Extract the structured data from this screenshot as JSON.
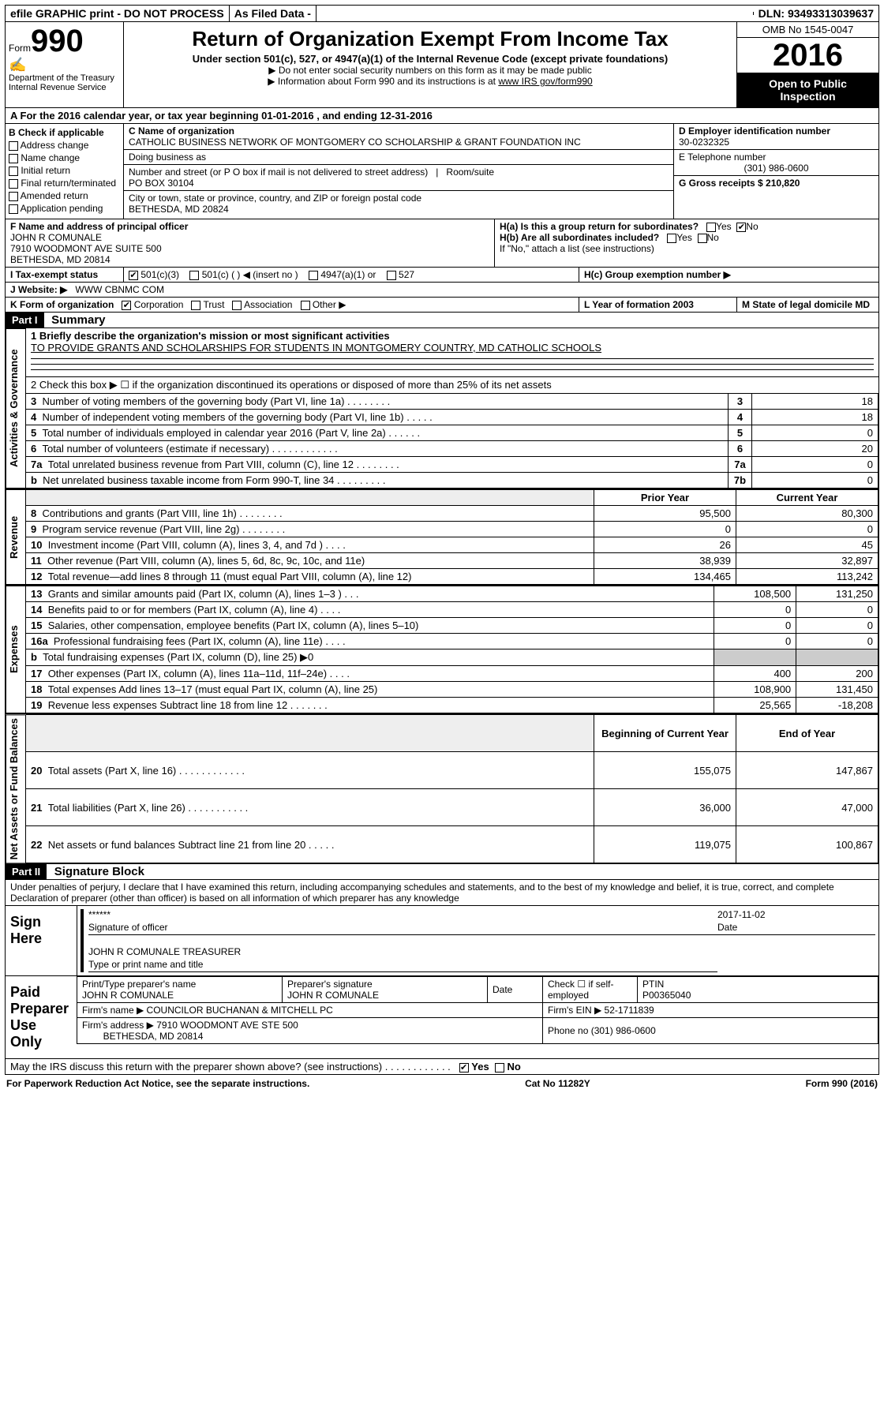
{
  "topbar": {
    "efile": "efile GRAPHIC print - DO NOT PROCESS",
    "asfiled": "As Filed Data -",
    "dln": "DLN: 93493313039637"
  },
  "header": {
    "form_label": "Form",
    "form_number": "990",
    "dept1": "Department of the Treasury",
    "dept2": "Internal Revenue Service",
    "title": "Return of Organization Exempt From Income Tax",
    "subtitle": "Under section 501(c), 527, or 4947(a)(1) of the Internal Revenue Code (except private foundations)",
    "note1": "▶ Do not enter social security numbers on this form as it may be made public",
    "note2_pre": "▶ Information about Form 990 and its instructions is at ",
    "note2_link": "www IRS gov/form990",
    "omb": "OMB No 1545-0047",
    "year": "2016",
    "openpub": "Open to Public Inspection"
  },
  "A": {
    "text": "A  For the 2016 calendar year, or tax year beginning 01-01-2016   , and ending 12-31-2016"
  },
  "B": {
    "title": "B Check if applicable",
    "opts": [
      "Address change",
      "Name change",
      "Initial return",
      "Final return/terminated",
      "Amended return",
      "Application pending"
    ]
  },
  "C": {
    "label": "C Name of organization",
    "name": "CATHOLIC BUSINESS NETWORK OF MONTGOMERY CO SCHOLARSHIP & GRANT FOUNDATION INC",
    "dba_label": "Doing business as",
    "addr_label": "Number and street (or P O  box if mail is not delivered to street address)",
    "room_label": "Room/suite",
    "addr": "PO BOX 30104",
    "city_label": "City or town, state or province, country, and ZIP or foreign postal code",
    "city": "BETHESDA, MD  20824"
  },
  "D": {
    "label": "D Employer identification number",
    "value": "30-0232325"
  },
  "E": {
    "label": "E Telephone number",
    "value": "(301) 986-0600"
  },
  "G": {
    "label": "G Gross receipts $ 210,820"
  },
  "F": {
    "label": "F  Name and address of principal officer",
    "name": "JOHN R COMUNALE",
    "addr1": "7910 WOODMONT AVE SUITE 500",
    "addr2": "BETHESDA, MD  20814"
  },
  "H": {
    "a": "H(a)  Is this a group return for subordinates?",
    "b": "H(b)  Are all subordinates included?",
    "note": "If \"No,\" attach a list  (see instructions)",
    "c": "H(c)  Group exemption number ▶",
    "yes": "Yes",
    "no": "No"
  },
  "I": {
    "label": "I  Tax-exempt status",
    "o501c3": "501(c)(3)",
    "o501c": "501(c) (   ) ◀ (insert no )",
    "o4947": "4947(a)(1) or",
    "o527": "527"
  },
  "J": {
    "label": "J  Website: ▶",
    "value": "WWW CBNMC COM"
  },
  "K": {
    "label": "K Form of organization",
    "corp": "Corporation",
    "trust": "Trust",
    "assoc": "Association",
    "other": "Other ▶"
  },
  "L": {
    "label": "L Year of formation  2003"
  },
  "M": {
    "label": "M State of legal domicile MD"
  },
  "partI": {
    "label": "Part I",
    "title": "Summary"
  },
  "summary": {
    "line1_label": "1 Briefly describe the organization's mission or most significant activities",
    "line1_text": "TO PROVIDE GRANTS AND SCHOLARSHIPS FOR STUDENTS IN MONTGOMERY COUNTRY, MD CATHOLIC SCHOOLS",
    "line2": "2  Check this box ▶ ☐  if the organization discontinued its operations or disposed of more than 25% of its net assets",
    "rows_gov": [
      {
        "n": "3",
        "t": "Number of voting members of the governing body (Part VI, line 1a)  .    .    .    .    .    .    .    .",
        "box": "3",
        "v": "18"
      },
      {
        "n": "4",
        "t": "Number of independent voting members of the governing body (Part VI, line 1b)   .    .    .    .    .",
        "box": "4",
        "v": "18"
      },
      {
        "n": "5",
        "t": "Total number of individuals employed in calendar year 2016 (Part V, line 2a)  .    .    .    .    .    .",
        "box": "5",
        "v": "0"
      },
      {
        "n": "6",
        "t": "Total number of volunteers (estimate if necessary)   .    .    .    .    .    .    .    .    .    .    .    .",
        "box": "6",
        "v": "20"
      },
      {
        "n": "7a",
        "t": "Total unrelated business revenue from Part VIII, column (C), line 12  .    .    .    .    .    .    .    .",
        "box": "7a",
        "v": "0"
      },
      {
        "n": "b",
        "t": "Net unrelated business taxable income from Form 990-T, line 34   .    .    .    .    .    .    .    .    .",
        "box": "7b",
        "v": "0"
      }
    ],
    "col_prior": "Prior Year",
    "col_current": "Current Year",
    "revenue": [
      {
        "n": "8",
        "t": "Contributions and grants (Part VIII, line 1h)   .    .    .    .    .    .    .    .",
        "p": "95,500",
        "c": "80,300"
      },
      {
        "n": "9",
        "t": "Program service revenue (Part VIII, line 2g)  .    .    .    .    .    .    .    .",
        "p": "0",
        "c": "0"
      },
      {
        "n": "10",
        "t": "Investment income (Part VIII, column (A), lines 3, 4, and 7d )  .    .    .    .",
        "p": "26",
        "c": "45"
      },
      {
        "n": "11",
        "t": "Other revenue (Part VIII, column (A), lines 5, 6d, 8c, 9c, 10c, and 11e)",
        "p": "38,939",
        "c": "32,897"
      },
      {
        "n": "12",
        "t": "Total revenue—add lines 8 through 11 (must equal Part VIII, column (A), line 12)",
        "p": "134,465",
        "c": "113,242"
      }
    ],
    "expenses": [
      {
        "n": "13",
        "t": "Grants and similar amounts paid (Part IX, column (A), lines 1–3 )  .    .    .",
        "p": "108,500",
        "c": "131,250"
      },
      {
        "n": "14",
        "t": "Benefits paid to or for members (Part IX, column (A), line 4)  .    .    .    .",
        "p": "0",
        "c": "0"
      },
      {
        "n": "15",
        "t": "Salaries, other compensation, employee benefits (Part IX, column (A), lines 5–10)",
        "p": "0",
        "c": "0"
      },
      {
        "n": "16a",
        "t": "Professional fundraising fees (Part IX, column (A), line 11e)  .    .    .    .",
        "p": "0",
        "c": "0"
      },
      {
        "n": "b",
        "t": "Total fundraising expenses (Part IX, column (D), line 25) ▶0",
        "p": "",
        "c": ""
      },
      {
        "n": "17",
        "t": "Other expenses (Part IX, column (A), lines 11a–11d, 11f–24e)  .    .    .    .",
        "p": "400",
        "c": "200"
      },
      {
        "n": "18",
        "t": "Total expenses  Add lines 13–17 (must equal Part IX, column (A), line 25)",
        "p": "108,900",
        "c": "131,450"
      },
      {
        "n": "19",
        "t": "Revenue less expenses  Subtract line 18 from line 12 .    .    .    .    .    .    .",
        "p": "25,565",
        "c": "-18,208"
      }
    ],
    "col_begin": "Beginning of Current Year",
    "col_end": "End of Year",
    "netassets": [
      {
        "n": "20",
        "t": "Total assets (Part X, line 16)  .    .    .    .    .    .    .    .    .    .    .    .",
        "p": "155,075",
        "c": "147,867"
      },
      {
        "n": "21",
        "t": "Total liabilities (Part X, line 26)  .    .    .    .    .    .    .    .    .    .    .",
        "p": "36,000",
        "c": "47,000"
      },
      {
        "n": "22",
        "t": "Net assets or fund balances  Subtract line 21 from line 20 .    .    .    .    .",
        "p": "119,075",
        "c": "100,867"
      }
    ],
    "vlabels": {
      "gov": "Activities & Governance",
      "rev": "Revenue",
      "exp": "Expenses",
      "net": "Net Assets or Fund Balances"
    }
  },
  "partII": {
    "label": "Part II",
    "title": "Signature Block"
  },
  "sig": {
    "perjury": "Under penalties of perjury, I declare that I have examined this return, including accompanying schedules and statements, and to the best of my knowledge and belief, it is true, correct, and complete  Declaration of preparer (other than officer) is based on all information of which preparer has any knowledge",
    "sign_here": "Sign Here",
    "stars": "******",
    "sig_officer": "Signature of officer",
    "date": "Date",
    "date_val": "2017-11-02",
    "name": "JOHN R COMUNALE TREASURER",
    "name_label": "Type or print name and title",
    "paid": "Paid Preparer Use Only",
    "prep_name_label": "Print/Type preparer's name",
    "prep_name": "JOHN R COMUNALE",
    "prep_sig_label": "Preparer's signature",
    "prep_sig": "JOHN R COMUNALE",
    "prep_date": "Date",
    "check_self": "Check ☐ if self-employed",
    "ptin_label": "PTIN",
    "ptin": "P00365040",
    "firm_name_label": "Firm's name      ▶",
    "firm_name": "COUNCILOR BUCHANAN & MITCHELL PC",
    "firm_ein_label": "Firm's EIN ▶",
    "firm_ein": "52-1711839",
    "firm_addr_label": "Firm's address ▶",
    "firm_addr": "7910 WOODMONT AVE STE 500",
    "firm_city": "BETHESDA, MD  20814",
    "phone_label": "Phone no  (301) 986-0600",
    "may_irs": "May the IRS discuss this return with the preparer shown above? (see instructions)   .    .    .    .    .    .    .    .    .    .    .    .",
    "yes": "Yes",
    "no": "No"
  },
  "footer": {
    "left": "For Paperwork Reduction Act Notice, see the separate instructions.",
    "mid": "Cat  No  11282Y",
    "right": "Form 990 (2016)"
  }
}
